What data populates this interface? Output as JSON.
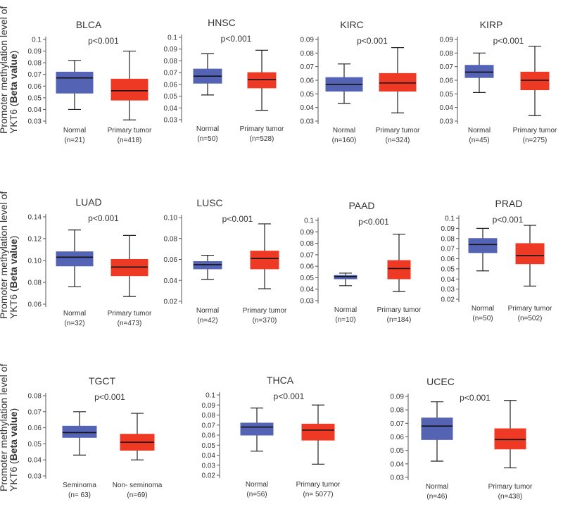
{
  "figure": {
    "ylabel_line1": "Promoter methylation level of",
    "ylabel_line2_prefix": "YKT6 (",
    "ylabel_line2_bold": "Beta value",
    "ylabel_line2_suffix": ")",
    "colors": {
      "normal": "#5563b5",
      "tumor": "#ee3a24",
      "axis": "#555555",
      "text": "#333333"
    }
  },
  "chart_data": [
    {
      "type": "box",
      "title": "BLCA",
      "pvalue": "p<0.001",
      "ylim": [
        0.03,
        0.1
      ],
      "ticks": [
        "0.03",
        "0.04",
        "0.05",
        "0.06",
        "0.07",
        "0.08",
        "0.09",
        "0.1"
      ],
      "groups": [
        {
          "name": "Normal",
          "n": "(n=21)",
          "min": 0.04,
          "q1": 0.054,
          "median": 0.067,
          "q3": 0.072,
          "max": 0.082
        },
        {
          "name": "Primary tumor",
          "n": "(n=418)",
          "min": 0.031,
          "q1": 0.048,
          "median": 0.056,
          "q3": 0.066,
          "max": 0.09
        }
      ]
    },
    {
      "type": "box",
      "title": "HNSC",
      "pvalue": "p<0.001",
      "ylim": [
        0.03,
        0.1
      ],
      "ticks": [
        "0.03",
        "0.04",
        "0.05",
        "0.06",
        "0.07",
        "0.08",
        "0.09",
        "0.1"
      ],
      "groups": [
        {
          "name": "Normal",
          "n": "(n=50)",
          "min": 0.051,
          "q1": 0.061,
          "median": 0.067,
          "q3": 0.073,
          "max": 0.086
        },
        {
          "name": "Primary tumor",
          "n": "(n=528)",
          "min": 0.038,
          "q1": 0.057,
          "median": 0.064,
          "q3": 0.07,
          "max": 0.089
        }
      ]
    },
    {
      "type": "box",
      "title": "KIRC",
      "pvalue": "p<0.001",
      "ylim": [
        0.03,
        0.09
      ],
      "ticks": [
        "0.03",
        "0.04",
        "0.05",
        "0.06",
        "0.07",
        "0.08",
        "0.09"
      ],
      "groups": [
        {
          "name": "Normal",
          "n": "(n=160)",
          "min": 0.043,
          "q1": 0.052,
          "median": 0.057,
          "q3": 0.062,
          "max": 0.072
        },
        {
          "name": "Primary tumor",
          "n": "(n=324)",
          "min": 0.036,
          "q1": 0.052,
          "median": 0.058,
          "q3": 0.065,
          "max": 0.084
        }
      ]
    },
    {
      "type": "box",
      "title": "KIRP",
      "pvalue": "p<0.001",
      "ylim": [
        0.03,
        0.09
      ],
      "ticks": [
        "0.03",
        "0.04",
        "0.05",
        "0.06",
        "0.07",
        "0.08",
        "0.09"
      ],
      "groups": [
        {
          "name": "Normal",
          "n": "(n=45)",
          "min": 0.051,
          "q1": 0.062,
          "median": 0.066,
          "q3": 0.071,
          "max": 0.08
        },
        {
          "name": "Primary tumor",
          "n": "(n=275)",
          "min": 0.034,
          "q1": 0.053,
          "median": 0.06,
          "q3": 0.066,
          "max": 0.085
        }
      ]
    },
    {
      "type": "box",
      "title": "LUAD",
      "pvalue": "p<0.001",
      "ylim": [
        0.06,
        0.14
      ],
      "ticks": [
        "0.06",
        "0.08",
        "0.10",
        "0.12",
        "0.14"
      ],
      "groups": [
        {
          "name": "Normal",
          "n": "(n=32)",
          "min": 0.076,
          "q1": 0.095,
          "median": 0.103,
          "q3": 0.108,
          "max": 0.128
        },
        {
          "name": "Primary tumor",
          "n": "(n=473)",
          "min": 0.067,
          "q1": 0.086,
          "median": 0.094,
          "q3": 0.101,
          "max": 0.123
        }
      ]
    },
    {
      "type": "box",
      "title": "LUSC",
      "pvalue": "p<0.001",
      "ylim": [
        0.02,
        0.1
      ],
      "ticks": [
        "0.02",
        "0.04",
        "0.06",
        "0.08",
        "0.10"
      ],
      "groups": [
        {
          "name": "Normal",
          "n": "(n=42)",
          "min": 0.041,
          "q1": 0.051,
          "median": 0.055,
          "q3": 0.058,
          "max": 0.064
        },
        {
          "name": "Primary tumor",
          "n": "(n=370)",
          "min": 0.032,
          "q1": 0.051,
          "median": 0.061,
          "q3": 0.068,
          "max": 0.094
        }
      ]
    },
    {
      "type": "box",
      "title": "PAAD",
      "pvalue": "p<0.001",
      "ylim": [
        0.03,
        0.1
      ],
      "ticks": [
        "0.03",
        "0.04",
        "0.05",
        "0.06",
        "0.07",
        "0.08",
        "0.09",
        "0.1"
      ],
      "groups": [
        {
          "name": "Normal",
          "n": "(n=10)",
          "min": 0.043,
          "q1": 0.049,
          "median": 0.051,
          "q3": 0.052,
          "max": 0.054
        },
        {
          "name": "Primary tumor",
          "n": "(n=184)",
          "min": 0.038,
          "q1": 0.049,
          "median": 0.058,
          "q3": 0.065,
          "max": 0.088
        }
      ]
    },
    {
      "type": "box",
      "title": "PRAD",
      "pvalue": "p<0.001",
      "ylim": [
        0.02,
        0.1
      ],
      "ticks": [
        "0.02",
        "0.03",
        "0.04",
        "0.05",
        "0.06",
        "0.07",
        "0.08",
        "0.09",
        "0.1"
      ],
      "groups": [
        {
          "name": "Normal",
          "n": "(n=50)",
          "min": 0.048,
          "q1": 0.066,
          "median": 0.074,
          "q3": 0.08,
          "max": 0.09
        },
        {
          "name": "Primary tumor",
          "n": "(n=502)",
          "min": 0.033,
          "q1": 0.055,
          "median": 0.063,
          "q3": 0.075,
          "max": 0.093
        }
      ]
    },
    {
      "type": "box",
      "title": "TGCT",
      "pvalue": "p<0.001",
      "ylim": [
        0.03,
        0.08
      ],
      "ticks": [
        "0.03",
        "0.04",
        "0.05",
        "0.06",
        "0.07",
        "0.08"
      ],
      "groups": [
        {
          "name": "Seminoma",
          "n": "(n= 63)",
          "min": 0.043,
          "q1": 0.054,
          "median": 0.057,
          "q3": 0.061,
          "max": 0.07
        },
        {
          "name": "Non- seminoma",
          "n": "(n=69)",
          "min": 0.04,
          "q1": 0.046,
          "median": 0.051,
          "q3": 0.056,
          "max": 0.069
        }
      ]
    },
    {
      "type": "box",
      "title": "THCA",
      "pvalue": "p<0.001",
      "ylim": [
        0.02,
        0.1
      ],
      "ticks": [
        "0.02",
        "0.03",
        "0.04",
        "0.05",
        "0.06",
        "0.07",
        "0.08",
        "0.09",
        "0.1"
      ],
      "groups": [
        {
          "name": "Normal",
          "n": "(n=56)",
          "min": 0.044,
          "q1": 0.06,
          "median": 0.068,
          "q3": 0.072,
          "max": 0.087
        },
        {
          "name": "Primary tumor",
          "n": "(n=  5077)",
          "min": 0.031,
          "q1": 0.055,
          "median": 0.065,
          "q3": 0.071,
          "max": 0.09
        }
      ]
    },
    {
      "type": "box",
      "title": "UCEC",
      "pvalue": "p<0.001",
      "ylim": [
        0.03,
        0.09
      ],
      "ticks": [
        "0.03",
        "0.04",
        "0.05",
        "0.06",
        "0.07",
        "0.08",
        "0.09"
      ],
      "groups": [
        {
          "name": "Normal",
          "n": "(n=46)",
          "min": 0.042,
          "q1": 0.058,
          "median": 0.068,
          "q3": 0.074,
          "max": 0.086
        },
        {
          "name": "Primary tumor",
          "n": "(n=438)",
          "min": 0.037,
          "q1": 0.051,
          "median": 0.058,
          "q3": 0.066,
          "max": 0.087
        }
      ]
    }
  ]
}
